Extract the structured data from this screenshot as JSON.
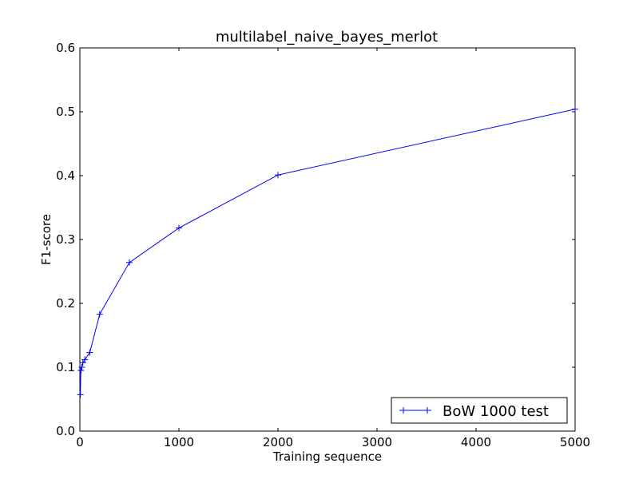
{
  "chart_data": {
    "type": "line",
    "title": "multilabel_naive_bayes_merlot",
    "xlabel": "Training sequence",
    "ylabel": "F1-score",
    "xlim": [
      0,
      5000
    ],
    "ylim": [
      0.0,
      0.6
    ],
    "xticks": [
      0,
      1000,
      2000,
      3000,
      4000,
      5000
    ],
    "xtick_labels": [
      "0",
      "1000",
      "2000",
      "3000",
      "4000",
      "5000"
    ],
    "yticks": [
      0.0,
      0.1,
      0.2,
      0.3,
      0.4,
      0.5,
      0.6
    ],
    "ytick_labels": [
      "0.0",
      "0.1",
      "0.2",
      "0.3",
      "0.4",
      "0.5",
      "0.6"
    ],
    "grid": false,
    "legend_position": "lower-right",
    "series": [
      {
        "name": "BoW 1000 test",
        "color": "#0000ff",
        "marker": "plus",
        "x": [
          5,
          10,
          20,
          30,
          50,
          100,
          200,
          500,
          1000,
          2000,
          5000
        ],
        "y": [
          0.057,
          0.095,
          0.1,
          0.107,
          0.112,
          0.123,
          0.183,
          0.264,
          0.318,
          0.401,
          0.504
        ]
      }
    ]
  }
}
